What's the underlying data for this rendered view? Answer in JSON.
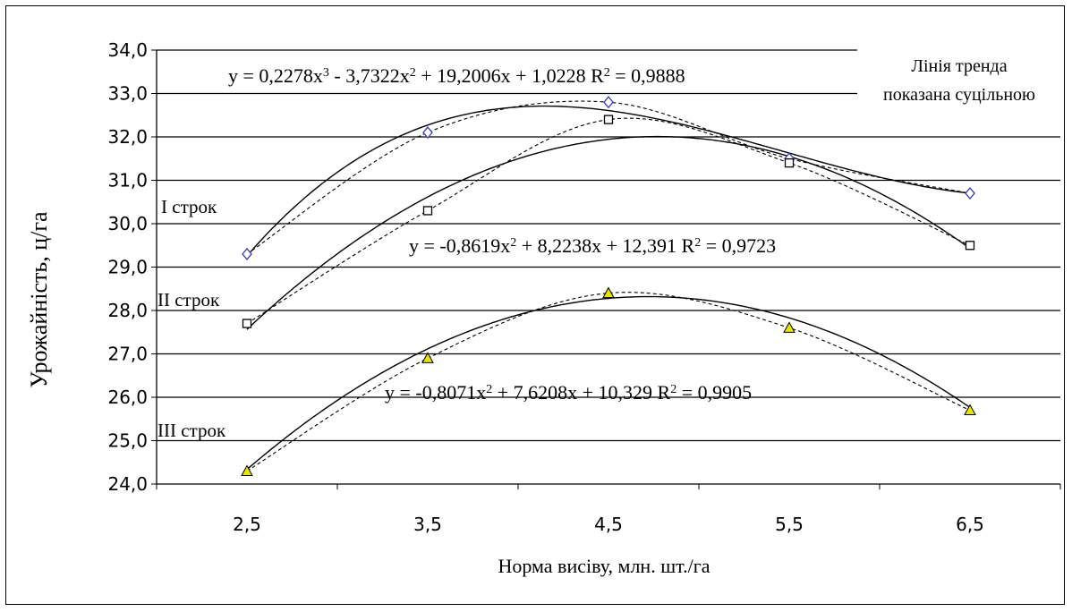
{
  "chart_data": {
    "type": "scatter",
    "title": "",
    "xlabel": "Норма висіву, млн. шт./га",
    "ylabel": "Урожайність, ц/га",
    "x": [
      2.5,
      3.5,
      4.5,
      5.5,
      6.5
    ],
    "x_ticks": [
      "2,5",
      "3,5",
      "4,5",
      "5,5",
      "6,5"
    ],
    "y_ticks": [
      "24,0",
      "25,0",
      "26,0",
      "27,0",
      "28,0",
      "29,0",
      "30,0",
      "31,0",
      "32,0",
      "33,0",
      "34,0"
    ],
    "ylim": [
      24,
      34
    ],
    "grid": true,
    "series": [
      {
        "name": "I строк",
        "marker": "diamond",
        "color": "#3b3bb3",
        "values": [
          29.3,
          32.1,
          32.8,
          31.5,
          30.7
        ],
        "trend": {
          "type": "poly",
          "coefficients": [
            1.0228,
            19.2006,
            -3.7322,
            0.2278
          ]
        },
        "equation": "y = 0,2278x³ - 3,7322x² + 19,2006x + 1,0228  R² = 0,9888"
      },
      {
        "name": "II строк",
        "marker": "square",
        "color": "#000000",
        "values": [
          27.7,
          30.3,
          32.4,
          31.4,
          29.5
        ],
        "trend": {
          "type": "poly",
          "coefficients": [
            12.391,
            8.2238,
            -0.8619
          ]
        },
        "equation": "y = -0,8619x² + 8,2238x + 12,391 R² = 0,9723"
      },
      {
        "name": "III строк",
        "marker": "triangle",
        "color": "#e5e500",
        "values": [
          24.3,
          26.9,
          28.4,
          27.6,
          25.7
        ],
        "trend": {
          "type": "poly",
          "coefficients": [
            10.329,
            7.6208,
            -0.8071
          ]
        },
        "equation": "y = -0,8071x² + 7,6208x + 10,329 R² = 0,9905"
      }
    ],
    "note": "Лінія тренда показана суцільною"
  }
}
